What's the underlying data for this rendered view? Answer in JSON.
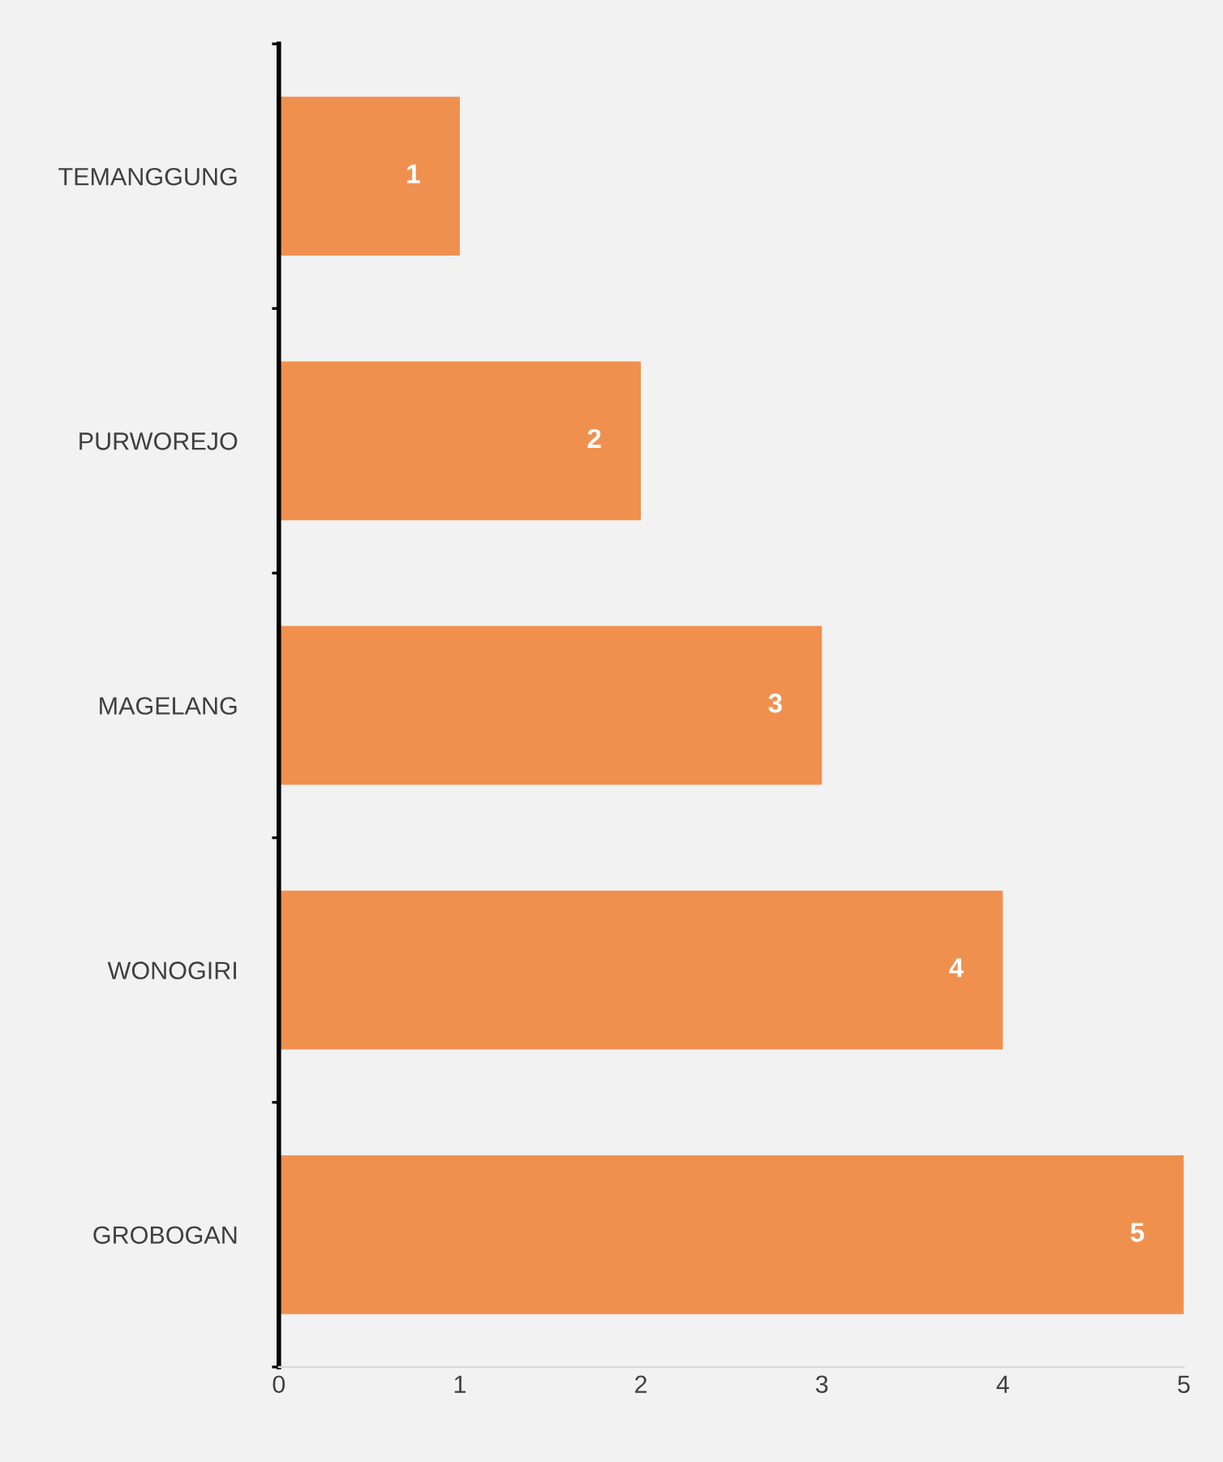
{
  "chart_data": {
    "type": "bar",
    "orientation": "horizontal",
    "categories": [
      "TEMANGGUNG",
      "PURWOREJO",
      "MAGELANG",
      "WONOGIRI",
      "GROBOGAN"
    ],
    "values": [
      1,
      2,
      3,
      4,
      5
    ],
    "color": "#f0904f",
    "xlim": [
      0,
      5
    ],
    "xticks": [
      0,
      1,
      2,
      3,
      4,
      5
    ],
    "data_labels": true,
    "grid": false,
    "legend": false
  }
}
